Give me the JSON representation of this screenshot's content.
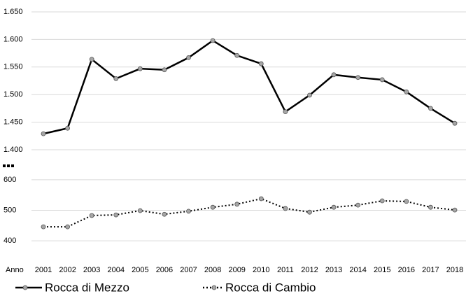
{
  "chart_data": [
    {
      "type": "line",
      "ylim": [
        1400,
        1650
      ],
      "yticks": [
        {
          "value": 1400,
          "label": "1.400"
        },
        {
          "value": 1450,
          "label": "1.450"
        },
        {
          "value": 1500,
          "label": "1.500"
        },
        {
          "value": 1550,
          "label": "1.550"
        },
        {
          "value": 1600,
          "label": "1.600"
        },
        {
          "value": 1650,
          "label": "1.650"
        }
      ],
      "grid": true,
      "series": [
        {
          "name": "Rocca di Mezzo",
          "color": "#000000",
          "values": [
            1429,
            1439,
            1564,
            1529,
            1547,
            1545,
            1567,
            1598,
            1571,
            1556,
            1469,
            1499,
            1536,
            1531,
            1527,
            1505,
            1475,
            1448
          ]
        }
      ]
    },
    {
      "type": "line",
      "x_label": "Anno",
      "categories": [
        "2001",
        "2002",
        "2003",
        "2004",
        "2005",
        "2006",
        "2007",
        "2008",
        "2009",
        "2010",
        "2011",
        "2012",
        "2013",
        "2014",
        "2015",
        "2016",
        "2017",
        "2018"
      ],
      "ylim": [
        350,
        625
      ],
      "yticks": [
        400,
        500,
        600
      ],
      "grid": true,
      "series": [
        {
          "name": "Rocca di Cambio",
          "color": "#000000",
          "values": [
            446,
            446,
            483,
            485,
            499,
            487,
            497,
            510,
            520,
            538,
            506,
            494,
            510,
            517,
            531,
            529,
            510,
            501
          ]
        }
      ]
    }
  ]
}
